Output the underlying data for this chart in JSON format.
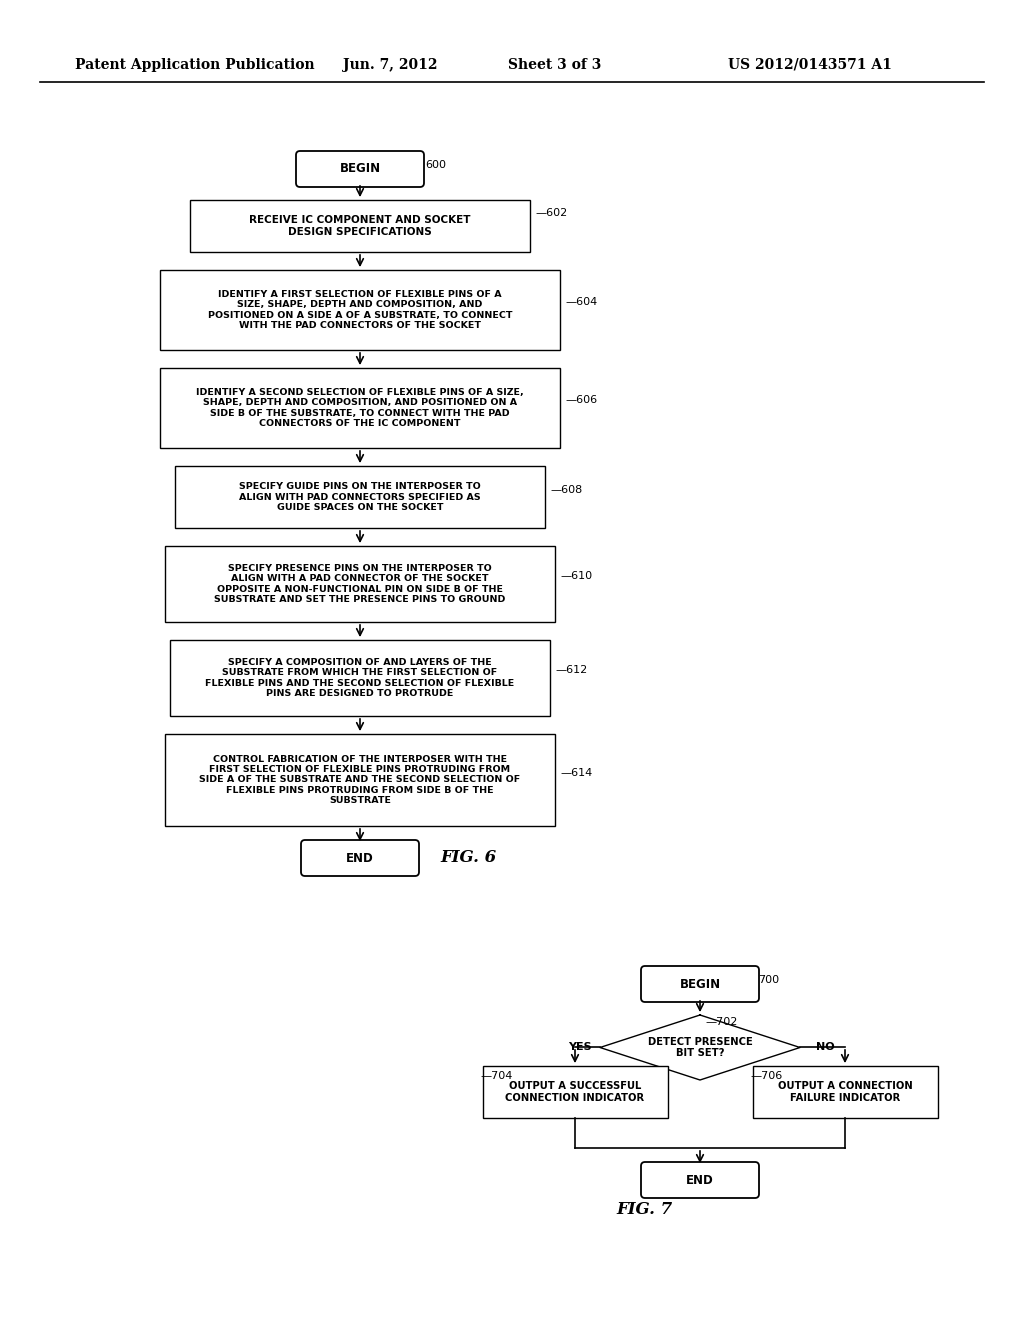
{
  "bg_color": "#ffffff",
  "header_text": "Patent Application Publication",
  "header_date": "Jun. 7, 2012",
  "header_sheet": "Sheet 3 of 3",
  "header_patent": "US 2012/0143571 A1",
  "fig6_label": "FIG. 6",
  "fig7_label": "FIG. 7"
}
